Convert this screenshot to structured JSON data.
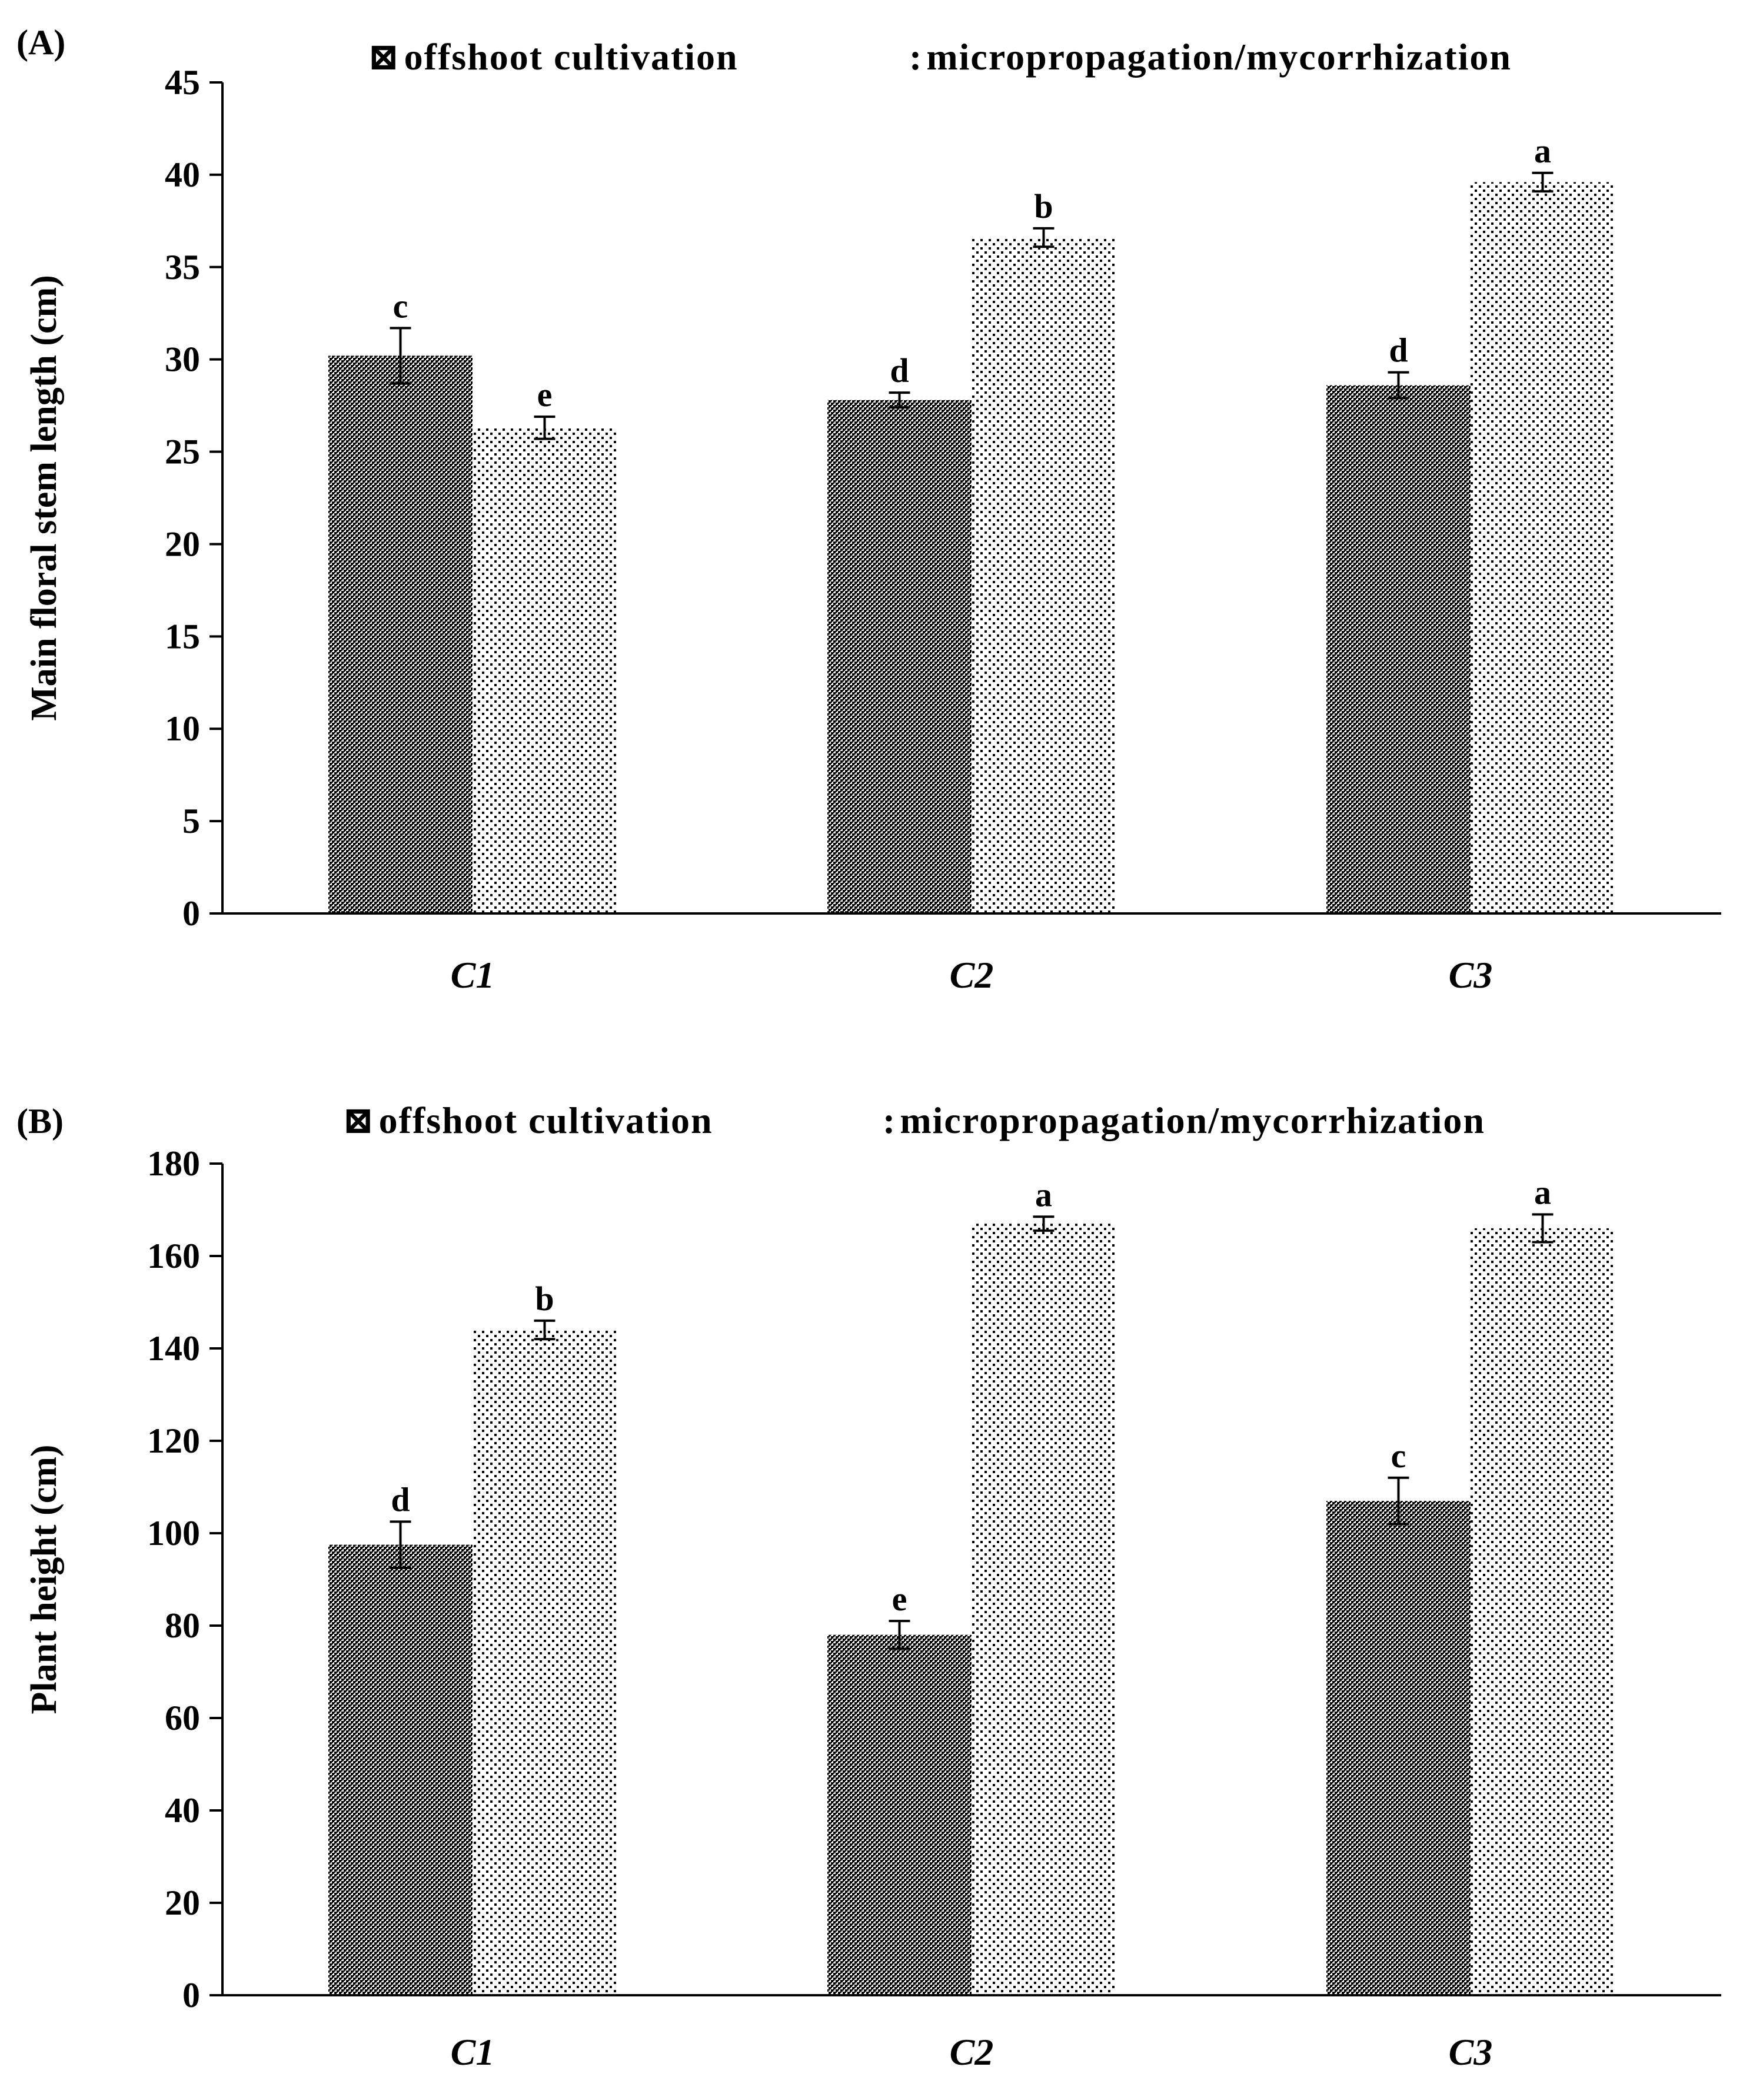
{
  "chart_data": [
    {
      "type": "bar",
      "panel_label": "(A)",
      "ylabel": "Main floral stem length (cm)",
      "xlabel": "",
      "ylim": [
        0,
        45
      ],
      "yticks": [
        0,
        5,
        10,
        15,
        20,
        25,
        30,
        35,
        40,
        45
      ],
      "categories": [
        "C1",
        "C2",
        "C3"
      ],
      "legend_position": "top",
      "series": [
        {
          "name": "offshoot cultivation",
          "legend_label": "offshoot cultivation",
          "legend_marker": "⊠",
          "pattern": "dense-checker",
          "values": [
            30.2,
            27.8,
            28.6
          ],
          "errors": [
            1.5,
            0.4,
            0.7
          ],
          "letters": [
            "c",
            "d",
            "d"
          ]
        },
        {
          "name": "micropropagation/mycorrhization",
          "legend_label": "micropropagation/mycorrhization",
          "legend_marker": ":",
          "pattern": "sparse-dots",
          "values": [
            26.3,
            36.6,
            39.6
          ],
          "errors": [
            0.6,
            0.5,
            0.5
          ],
          "letters": [
            "e",
            "b",
            "a"
          ]
        }
      ]
    },
    {
      "type": "bar",
      "panel_label": "(B)",
      "ylabel": "Plant height (cm)",
      "xlabel": "",
      "ylim": [
        0,
        180
      ],
      "yticks": [
        0,
        20,
        40,
        60,
        80,
        100,
        120,
        140,
        160,
        180
      ],
      "categories": [
        "C1",
        "C2",
        "C3"
      ],
      "legend_position": "top",
      "series": [
        {
          "name": "offshoot cultivation",
          "legend_label": "offshoot cultivation",
          "legend_marker": "⊠",
          "pattern": "dense-checker",
          "values": [
            97.5,
            78.0,
            107.0
          ],
          "errors": [
            5.0,
            3.0,
            5.0
          ],
          "letters": [
            "d",
            "e",
            "c"
          ]
        },
        {
          "name": "micropropagation/mycorrhization",
          "legend_label": "micropropagation/mycorrhization",
          "legend_marker": ":",
          "pattern": "sparse-dots",
          "values": [
            144.0,
            167.0,
            166.0
          ],
          "errors": [
            2.0,
            1.5,
            3.0
          ],
          "letters": [
            "b",
            "a",
            "a"
          ]
        }
      ]
    }
  ]
}
